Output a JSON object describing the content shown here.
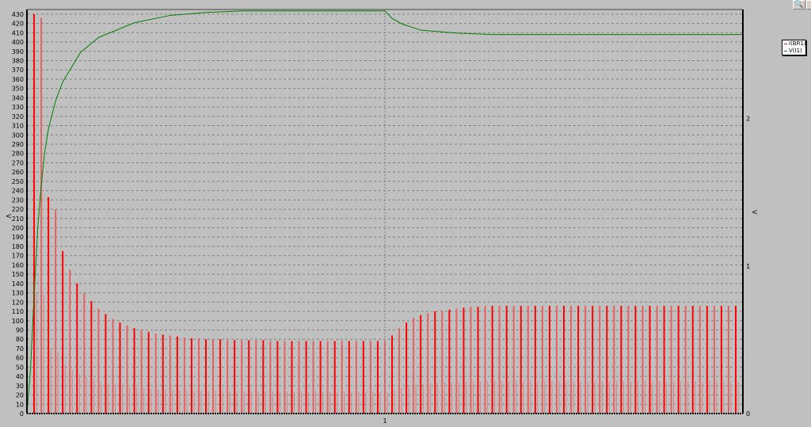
{
  "toolbar": {
    "zoom_icon": "magnifier-icon"
  },
  "chart_data": {
    "type": "line",
    "title": "",
    "xlabel": "",
    "ylabel_left": "V",
    "ylabel_right": "V",
    "xlim": [
      0,
      2
    ],
    "ylim_left": [
      0,
      435
    ],
    "ylim_right": [
      0,
      2.74
    ],
    "x_ticks": [
      "1"
    ],
    "x_tick_values": [
      1
    ],
    "y_left_ticks": [
      0,
      10,
      20,
      30,
      40,
      50,
      60,
      70,
      80,
      90,
      100,
      110,
      120,
      130,
      140,
      150,
      160,
      170,
      180,
      190,
      200,
      210,
      220,
      230,
      240,
      250,
      260,
      270,
      280,
      290,
      300,
      310,
      320,
      330,
      340,
      350,
      360,
      370,
      380,
      390,
      400,
      410,
      420,
      430
    ],
    "y_right_ticks": [
      0,
      1,
      2
    ],
    "grid": true,
    "legend_position": "outside-right",
    "series": [
      {
        "name": "I(BR1)",
        "color": "#ff0000",
        "axis": "left",
        "style": "spikes",
        "period": 0.02,
        "peaks": [
          430,
          426,
          233,
          220,
          175,
          155,
          140,
          130,
          121,
          113,
          107,
          102,
          98,
          95,
          92,
          90,
          88,
          86,
          85,
          84,
          83,
          82,
          81,
          81,
          80,
          80,
          80,
          79,
          79,
          79,
          79,
          79,
          79,
          78,
          78,
          78,
          78,
          78,
          78,
          78,
          78,
          78,
          78,
          78,
          78,
          78,
          78,
          78,
          78,
          78,
          84,
          92,
          98,
          103,
          106,
          108,
          110,
          111,
          112,
          113,
          114,
          115,
          115,
          116,
          116,
          116,
          116,
          116,
          116,
          116,
          116,
          116,
          116,
          116,
          116,
          116,
          116,
          116,
          116,
          116,
          116,
          116,
          116,
          116,
          116,
          116,
          116,
          116,
          116,
          116,
          116,
          116,
          116,
          116,
          116,
          116,
          116,
          116,
          116
        ]
      },
      {
        "name": "V(I1)",
        "color": "#008000",
        "axis": "right",
        "x": [
          0,
          0.01,
          0.02,
          0.03,
          0.04,
          0.05,
          0.06,
          0.08,
          0.1,
          0.15,
          0.2,
          0.3,
          0.4,
          0.5,
          0.6,
          1.0,
          1.02,
          1.05,
          1.1,
          1.2,
          1.3,
          2.0
        ],
        "y": [
          0,
          0.3,
          0.8,
          1.25,
          1.55,
          1.78,
          1.93,
          2.12,
          2.25,
          2.45,
          2.55,
          2.65,
          2.7,
          2.72,
          2.73,
          2.73,
          2.68,
          2.64,
          2.6,
          2.58,
          2.57,
          2.57
        ]
      }
    ]
  }
}
